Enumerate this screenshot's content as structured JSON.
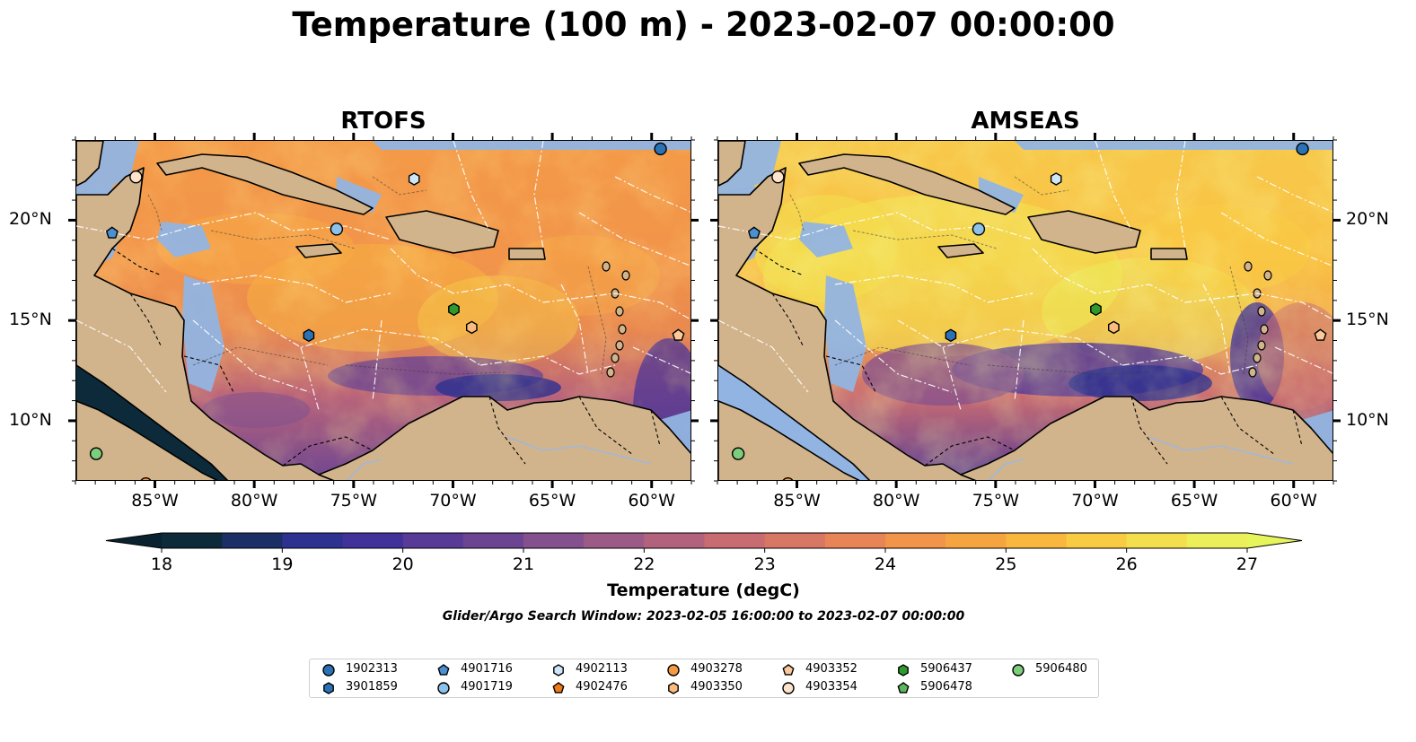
{
  "title": "Temperature (100 m) - 2023-02-07 00:00:00",
  "panels": [
    {
      "title": "RTOFS",
      "variant": "warm"
    },
    {
      "title": "AMSEAS",
      "variant": "hot"
    }
  ],
  "map_extent": {
    "lon_min": -89,
    "lon_max": -58,
    "lat_min": 7,
    "lat_max": 24
  },
  "x_ticks": [
    "85°W",
    "80°W",
    "75°W",
    "70°W",
    "65°W",
    "60°W"
  ],
  "y_ticks": [
    "20°N",
    "15°N",
    "10°N"
  ],
  "colorbar": {
    "label": "Temperature (degC)",
    "ticks": [
      "18",
      "19",
      "20",
      "21",
      "22",
      "23",
      "24",
      "25",
      "26",
      "27"
    ],
    "colors": [
      "#0c2a3a",
      "#1b2f66",
      "#2d3190",
      "#41319a",
      "#573b96",
      "#6c4592",
      "#84518e",
      "#9c5b87",
      "#b3627e",
      "#c86c72",
      "#d97765",
      "#e98457",
      "#f2944a",
      "#f6a440",
      "#f9b73d",
      "#f9cb42",
      "#f3df4e",
      "#ebf05a"
    ],
    "under_color": "#0a2230",
    "over_color": "#e6f55c"
  },
  "subtitle": "Glider/Argo Search Window: 2023-02-05 16:00:00 to 2023-02-07 00:00:00",
  "legend": [
    {
      "id": "1902313",
      "marker": "circle",
      "color": "#2a72b5"
    },
    {
      "id": "3901859",
      "marker": "hexagon",
      "color": "#2a72b5"
    },
    {
      "id": "4901716",
      "marker": "pentagon",
      "color": "#4a90d2"
    },
    {
      "id": "4901719",
      "marker": "circle",
      "color": "#8cc1ea"
    },
    {
      "id": "4902113",
      "marker": "hexagon",
      "color": "#cfe6f7"
    },
    {
      "id": "4902476",
      "marker": "pentagon",
      "color": "#f07a18"
    },
    {
      "id": "4903278",
      "marker": "circle",
      "color": "#f59a44"
    },
    {
      "id": "4903350",
      "marker": "hexagon",
      "color": "#f9bb7e"
    },
    {
      "id": "4903352",
      "marker": "pentagon",
      "color": "#fbc99a"
    },
    {
      "id": "4903354",
      "marker": "circle",
      "color": "#fde3cc"
    },
    {
      "id": "5906437",
      "marker": "hexagon",
      "color": "#2e9a2e"
    },
    {
      "id": "5906478",
      "marker": "pentagon",
      "color": "#5cb85c"
    },
    {
      "id": "5906480",
      "marker": "circle",
      "color": "#7ccd7c"
    }
  ],
  "floats": [
    {
      "id": "1902313",
      "lon": -59.6,
      "lat": 23.6
    },
    {
      "id": "3901859",
      "lon": -77.3,
      "lat": 14.3
    },
    {
      "id": "4901716",
      "lon": -87.2,
      "lat": 19.4
    },
    {
      "id": "4901719",
      "lon": -75.9,
      "lat": 19.6
    },
    {
      "id": "4902113",
      "lon": -72.0,
      "lat": 22.1
    },
    {
      "id": "4902476",
      "lon": -85.5,
      "lat": 6.9
    },
    {
      "id": "4903278",
      "lon": -85.5,
      "lat": 6.9
    },
    {
      "id": "4903350",
      "lon": -69.1,
      "lat": 14.7
    },
    {
      "id": "4903352",
      "lon": -58.7,
      "lat": 14.3
    },
    {
      "id": "4903354",
      "lon": -86.0,
      "lat": 22.2
    },
    {
      "id": "5906437",
      "lon": -70.0,
      "lat": 15.6
    },
    {
      "id": "5906478",
      "lon": -88.0,
      "lat": 8.4
    },
    {
      "id": "5906480",
      "lon": -88.0,
      "lat": 8.4
    }
  ],
  "colors": {
    "land": "#d2b48c",
    "shallow_water": "#92b4e2",
    "coast": "#000000"
  }
}
